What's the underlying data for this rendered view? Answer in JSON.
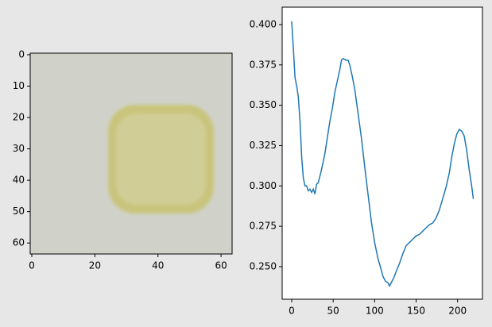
{
  "chart_data": [
    {
      "type": "image",
      "xlim": [
        -0.5,
        63.5
      ],
      "ylim": [
        63.5,
        -0.5
      ],
      "xticks": [
        0,
        20,
        40,
        60
      ],
      "yticks": [
        0,
        10,
        20,
        30,
        40,
        50,
        60
      ]
    },
    {
      "type": "line",
      "x": [
        0,
        2,
        4,
        6,
        8,
        10,
        12,
        14,
        16,
        18,
        20,
        22,
        24,
        26,
        28,
        30,
        32,
        35,
        38,
        40,
        43,
        46,
        49,
        52,
        55,
        58,
        60,
        62,
        65,
        68,
        70,
        73,
        76,
        80,
        84,
        88,
        92,
        96,
        100,
        104,
        108,
        110,
        113,
        116,
        118,
        120,
        123,
        126,
        130,
        134,
        138,
        142,
        146,
        150,
        154,
        158,
        162,
        166,
        170,
        174,
        178,
        182,
        186,
        190,
        193,
        196,
        199,
        202,
        205,
        208,
        211,
        214,
        217,
        219
      ],
      "series": [
        {
          "color": "#1f77b4",
          "values": [
            0.402,
            0.385,
            0.367,
            0.362,
            0.355,
            0.34,
            0.318,
            0.305,
            0.3,
            0.3,
            0.297,
            0.298,
            0.296,
            0.298,
            0.295,
            0.301,
            0.302,
            0.308,
            0.315,
            0.32,
            0.33,
            0.34,
            0.348,
            0.358,
            0.365,
            0.372,
            0.378,
            0.379,
            0.378,
            0.378,
            0.375,
            0.368,
            0.36,
            0.345,
            0.33,
            0.312,
            0.295,
            0.278,
            0.265,
            0.255,
            0.248,
            0.244,
            0.241,
            0.24,
            0.238,
            0.24,
            0.243,
            0.247,
            0.252,
            0.258,
            0.263,
            0.265,
            0.267,
            0.269,
            0.27,
            0.272,
            0.274,
            0.276,
            0.277,
            0.28,
            0.285,
            0.292,
            0.299,
            0.308,
            0.318,
            0.326,
            0.332,
            0.335,
            0.334,
            0.331,
            0.322,
            0.31,
            0.3,
            0.292
          ]
        }
      ],
      "xlim": [
        -11.5,
        230
      ],
      "ylim": [
        0.2298,
        0.4108
      ],
      "xticks": [
        0,
        50,
        100,
        150,
        200
      ],
      "yticks": [
        {
          "value": 0.25,
          "label": "0.250"
        },
        0.275,
        {
          "value": 0.3,
          "label": "0.300"
        },
        0.325,
        {
          "value": 0.35,
          "label": "0.350"
        },
        0.375,
        {
          "value": 0.4,
          "label": "0.400"
        }
      ]
    }
  ]
}
